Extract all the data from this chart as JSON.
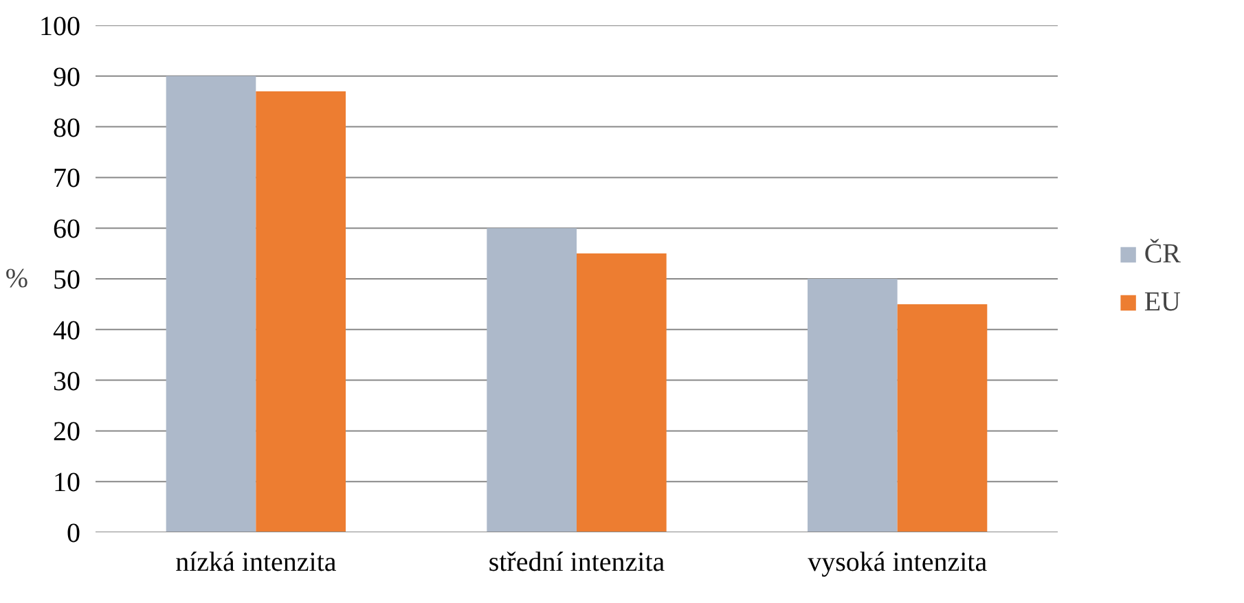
{
  "chart_data": {
    "type": "bar",
    "ylabel": "%",
    "categories": [
      "nízká intenzita",
      "střední intenzita",
      "vysoká intenzita"
    ],
    "series": [
      {
        "name": "ČR",
        "color": "#adb9ca",
        "values": [
          90,
          60,
          50
        ]
      },
      {
        "name": "EU",
        "color": "#ed7d31",
        "values": [
          87,
          55,
          45
        ]
      }
    ],
    "ylim": [
      0,
      100
    ],
    "yticks": [
      0,
      10,
      20,
      30,
      40,
      50,
      60,
      70,
      80,
      90,
      100
    ],
    "grid": "y",
    "legend": "right"
  }
}
